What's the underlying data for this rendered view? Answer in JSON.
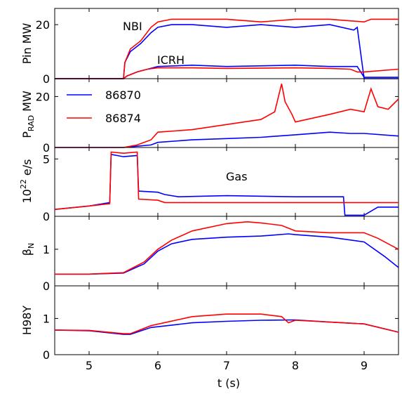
{
  "chart_data": [
    {
      "type": "line",
      "ylabel": "Pin MW",
      "ylim": [
        0,
        26
      ],
      "yticks": [
        "0",
        "20"
      ],
      "annotations": [
        "NBI",
        "ICRH"
      ],
      "series": [
        {
          "name": "86870",
          "color": "#0000ff",
          "role": "NBI",
          "x": [
            4.5,
            5.5,
            5.52,
            5.6,
            5.75,
            5.9,
            6.0,
            6.2,
            6.5,
            7.0,
            7.5,
            8.0,
            8.5,
            8.85,
            8.9,
            9.0,
            9.5
          ],
          "y": [
            0,
            0,
            6,
            10,
            13,
            17,
            19,
            20,
            20,
            19,
            20,
            19,
            20,
            18,
            19,
            0,
            0
          ]
        },
        {
          "name": "86874",
          "color": "#ff0000",
          "role": "NBI",
          "x": [
            4.5,
            5.5,
            5.52,
            5.6,
            5.75,
            5.9,
            6.0,
            6.2,
            6.5,
            7.0,
            7.5,
            8.0,
            8.5,
            9.0,
            9.1,
            9.5
          ],
          "y": [
            0,
            0,
            6,
            11,
            14,
            19,
            21,
            22,
            22,
            22,
            21,
            22,
            22,
            21,
            22,
            22
          ]
        },
        {
          "name": "86870",
          "color": "#0000ff",
          "role": "ICRH",
          "x": [
            4.5,
            5.5,
            5.55,
            5.7,
            5.85,
            6.0,
            6.5,
            7.0,
            8.0,
            8.5,
            8.9,
            9.0,
            9.5
          ],
          "y": [
            0,
            0,
            1,
            2.5,
            3.5,
            4.5,
            5,
            4.5,
            5,
            4.5,
            4.5,
            0.5,
            0.5
          ]
        },
        {
          "name": "86874",
          "color": "#ff0000",
          "role": "ICRH",
          "x": [
            4.5,
            5.5,
            5.55,
            5.7,
            5.85,
            6.0,
            6.5,
            7.0,
            8.0,
            8.5,
            8.8,
            8.9,
            9.0,
            9.5
          ],
          "y": [
            0,
            0,
            1,
            2.5,
            3.5,
            4,
            4,
            3.8,
            4,
            3.8,
            3.5,
            2.5,
            2.5,
            3.5
          ]
        }
      ]
    },
    {
      "type": "line",
      "ylabel": "P_RAD MW",
      "ylim": [
        0,
        27
      ],
      "yticks": [
        "0",
        "20"
      ],
      "legend": {
        "position": "upper-left",
        "entries": [
          "86870",
          "86874"
        ]
      },
      "series": [
        {
          "name": "86870",
          "color": "#0000ff",
          "x": [
            4.5,
            5.5,
            5.7,
            5.9,
            6.0,
            6.5,
            7.0,
            7.5,
            8.0,
            8.5,
            8.8,
            9.0,
            9.5
          ],
          "y": [
            0,
            0,
            0.5,
            1,
            2,
            3,
            3.5,
            4,
            5,
            6,
            5.5,
            5.5,
            4.5
          ]
        },
        {
          "name": "86874",
          "color": "#ff0000",
          "x": [
            4.5,
            5.5,
            5.7,
            5.9,
            6.0,
            6.5,
            7.0,
            7.5,
            7.7,
            7.8,
            7.85,
            7.95,
            8.0,
            8.5,
            8.8,
            9.0,
            9.1,
            9.2,
            9.35,
            9.5
          ],
          "y": [
            0,
            0,
            1,
            3,
            6,
            7,
            9,
            11,
            14,
            25,
            18,
            13,
            10,
            13,
            15,
            14,
            23,
            16,
            15,
            19
          ]
        }
      ]
    },
    {
      "type": "line",
      "ylabel": "10^22 e/s",
      "ylim": [
        0,
        6
      ],
      "yticks": [
        "0",
        "5"
      ],
      "annotations": [
        "Gas"
      ],
      "series": [
        {
          "name": "86870",
          "color": "#0000ff",
          "x": [
            4.5,
            5.0,
            5.3,
            5.32,
            5.5,
            5.7,
            5.72,
            6.0,
            6.1,
            6.3,
            7.0,
            8.0,
            8.7,
            8.72,
            9.0,
            9.2,
            9.5
          ],
          "y": [
            0.6,
            0.9,
            1.2,
            5.4,
            5.2,
            5.3,
            2.2,
            2.1,
            1.9,
            1.7,
            1.8,
            1.7,
            1.7,
            0.1,
            0.1,
            0.8,
            0.8
          ]
        },
        {
          "name": "86874",
          "color": "#ff0000",
          "x": [
            4.5,
            5.0,
            5.3,
            5.32,
            5.5,
            5.7,
            5.72,
            6.0,
            6.1,
            6.5,
            7.0,
            8.0,
            9.0,
            9.5
          ],
          "y": [
            0.6,
            0.9,
            1.1,
            5.6,
            5.5,
            5.6,
            1.5,
            1.4,
            1.2,
            1.2,
            1.2,
            1.2,
            1.2,
            1.2
          ]
        }
      ]
    },
    {
      "type": "line",
      "ylabel": "β_N",
      "ylim": [
        0,
        1.9
      ],
      "yticks": [
        "0",
        "1"
      ],
      "series": [
        {
          "name": "86870",
          "color": "#0000ff",
          "x": [
            4.5,
            5.0,
            5.5,
            5.8,
            6.0,
            6.2,
            6.5,
            7.0,
            7.5,
            7.9,
            8.0,
            8.5,
            9.0,
            9.3,
            9.5
          ],
          "y": [
            0.32,
            0.32,
            0.35,
            0.6,
            0.95,
            1.15,
            1.27,
            1.33,
            1.36,
            1.42,
            1.4,
            1.33,
            1.2,
            0.8,
            0.5
          ]
        },
        {
          "name": "86874",
          "color": "#ff0000",
          "x": [
            4.5,
            5.0,
            5.5,
            5.8,
            6.0,
            6.2,
            6.5,
            7.0,
            7.3,
            7.5,
            7.8,
            8.0,
            8.5,
            9.0,
            9.2,
            9.5
          ],
          "y": [
            0.32,
            0.32,
            0.36,
            0.65,
            1.0,
            1.25,
            1.5,
            1.7,
            1.75,
            1.72,
            1.65,
            1.5,
            1.45,
            1.45,
            1.3,
            1.0
          ]
        }
      ]
    },
    {
      "type": "line",
      "xlabel": "t (s)",
      "ylabel": "H98Y",
      "ylim": [
        0,
        1.9
      ],
      "yticks": [
        "0",
        "1"
      ],
      "xlim": [
        4.5,
        9.5
      ],
      "xticks": [
        "5",
        "6",
        "7",
        "8",
        "9"
      ],
      "series": [
        {
          "name": "86870",
          "color": "#0000ff",
          "x": [
            4.5,
            5.0,
            5.5,
            5.6,
            5.9,
            6.5,
            7.0,
            7.5,
            8.0,
            8.5,
            9.0,
            9.5
          ],
          "y": [
            0.68,
            0.66,
            0.56,
            0.56,
            0.75,
            0.88,
            0.92,
            0.95,
            0.96,
            0.9,
            0.85,
            0.62
          ]
        },
        {
          "name": "86874",
          "color": "#ff0000",
          "x": [
            4.5,
            5.0,
            5.5,
            5.6,
            5.9,
            6.5,
            7.0,
            7.5,
            7.8,
            7.9,
            8.0,
            8.5,
            9.0,
            9.5
          ],
          "y": [
            0.68,
            0.67,
            0.58,
            0.58,
            0.8,
            1.05,
            1.12,
            1.12,
            1.05,
            0.88,
            0.95,
            0.9,
            0.85,
            0.62
          ]
        }
      ]
    }
  ]
}
